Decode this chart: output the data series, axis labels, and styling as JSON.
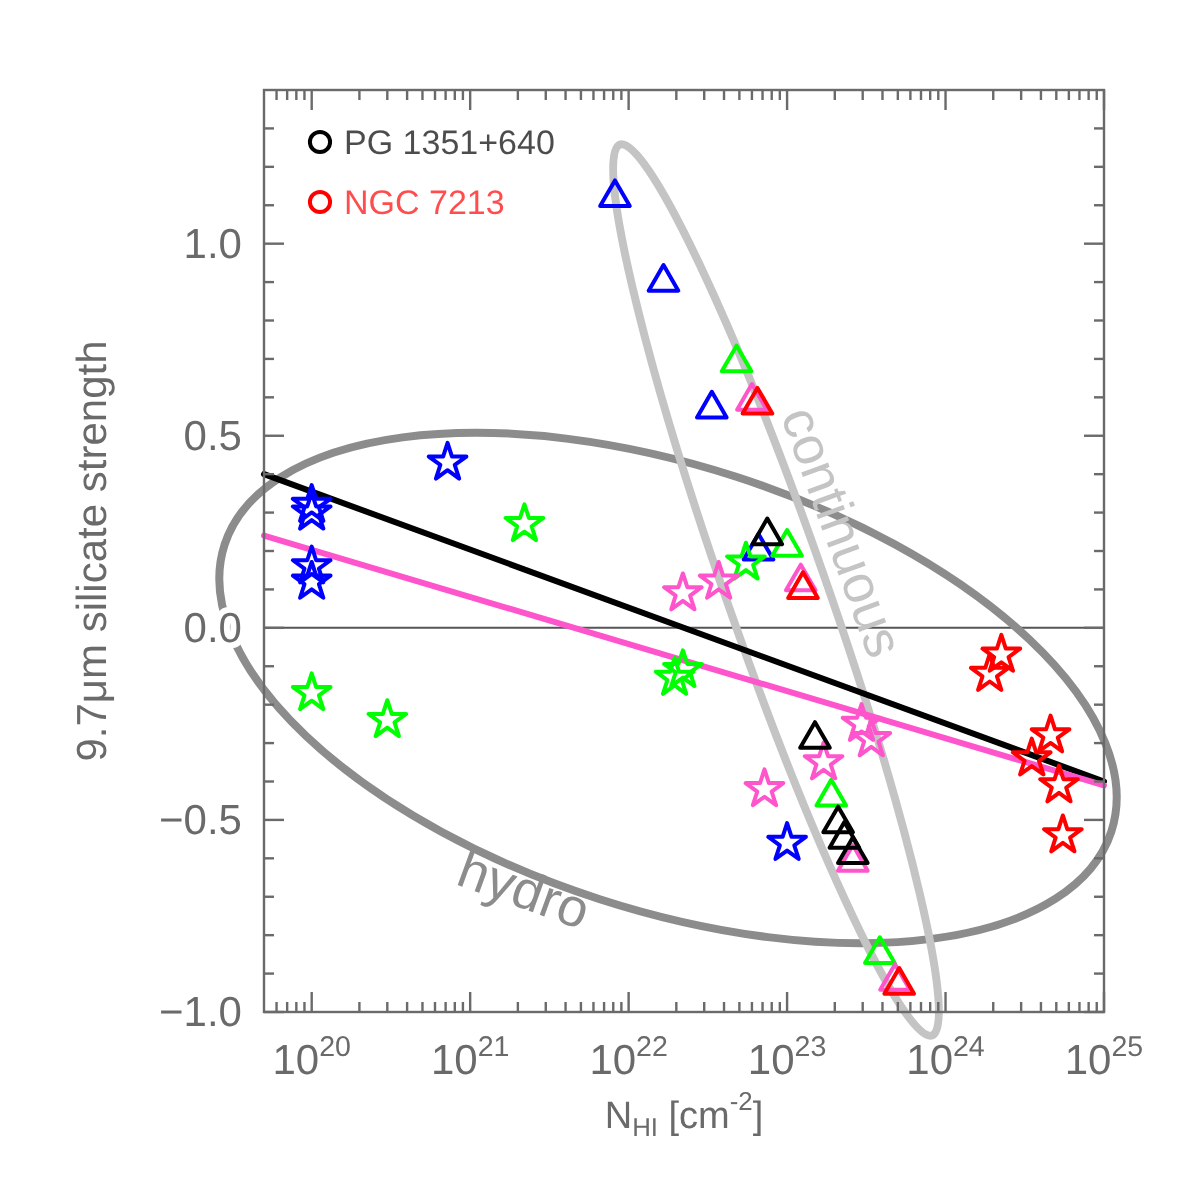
{
  "chart_data": {
    "type": "scatter",
    "xlabel": "N$_{HI}$ [cm$^{-2}$]",
    "ylabel": "9.7μm silicate strength",
    "log": "x",
    "xlim": [
      5e+19,
      1e+25
    ],
    "ylim": [
      -1.0,
      1.4
    ],
    "xticks": [
      {
        "value": 6e+19,
        "label": null
      },
      {
        "value": 7e+19,
        "label": null
      },
      {
        "value": 8e+19,
        "label": null
      },
      {
        "value": 9e+19,
        "label": null
      },
      {
        "value": 1e+20,
        "label": "10$^{20}$"
      },
      {
        "value": 2e+20,
        "label": null
      },
      {
        "value": 3e+20,
        "label": null
      },
      {
        "value": 4e+20,
        "label": null
      },
      {
        "value": 5e+20,
        "label": null
      },
      {
        "value": 6e+20,
        "label": null
      },
      {
        "value": 7e+20,
        "label": null
      },
      {
        "value": 8e+20,
        "label": null
      },
      {
        "value": 9e+20,
        "label": null
      },
      {
        "value": 1e+21,
        "label": "10$^{21}$"
      },
      {
        "value": 2e+21,
        "label": null
      },
      {
        "value": 3e+21,
        "label": null
      },
      {
        "value": 4e+21,
        "label": null
      },
      {
        "value": 5e+21,
        "label": null
      },
      {
        "value": 6e+21,
        "label": null
      },
      {
        "value": 7e+21,
        "label": null
      },
      {
        "value": 8e+21,
        "label": null
      },
      {
        "value": 9e+21,
        "label": null
      },
      {
        "value": 1e+22,
        "label": "10$^{22}$"
      },
      {
        "value": 2e+22,
        "label": null
      },
      {
        "value": 3e+22,
        "label": null
      },
      {
        "value": 4e+22,
        "label": null
      },
      {
        "value": 5e+22,
        "label": null
      },
      {
        "value": 6e+22,
        "label": null
      },
      {
        "value": 7e+22,
        "label": null
      },
      {
        "value": 8e+22,
        "label": null
      },
      {
        "value": 9e+22,
        "label": null
      },
      {
        "value": 1e+23,
        "label": "10$^{23}$"
      },
      {
        "value": 2e+23,
        "label": null
      },
      {
        "value": 3e+23,
        "label": null
      },
      {
        "value": 4e+23,
        "label": null
      },
      {
        "value": 5e+23,
        "label": null
      },
      {
        "value": 6e+23,
        "label": null
      },
      {
        "value": 7e+23,
        "label": null
      },
      {
        "value": 8e+23,
        "label": null
      },
      {
        "value": 9e+23,
        "label": null
      },
      {
        "value": 1e+24,
        "label": "10$^{24}$"
      },
      {
        "value": 2e+24,
        "label": null
      },
      {
        "value": 3e+24,
        "label": null
      },
      {
        "value": 4e+24,
        "label": null
      },
      {
        "value": 5e+24,
        "label": null
      },
      {
        "value": 6e+24,
        "label": null
      },
      {
        "value": 7e+24,
        "label": null
      },
      {
        "value": 8e+24,
        "label": null
      },
      {
        "value": 9e+24,
        "label": null
      },
      {
        "value": 1e+25,
        "label": "10$^{25}$"
      }
    ],
    "yticks": [
      {
        "value": -1.0,
        "label": "−1.0"
      },
      {
        "value": -0.9,
        "label": null
      },
      {
        "value": -0.8,
        "label": null
      },
      {
        "value": -0.7,
        "label": null
      },
      {
        "value": -0.6,
        "label": null
      },
      {
        "value": -0.5,
        "label": "−0.5"
      },
      {
        "value": -0.4,
        "label": null
      },
      {
        "value": -0.3,
        "label": null
      },
      {
        "value": -0.2,
        "label": null
      },
      {
        "value": -0.1,
        "label": null
      },
      {
        "value": 0,
        "label": "0.0"
      },
      {
        "value": 0.1,
        "label": null
      },
      {
        "value": 0.2,
        "label": null
      },
      {
        "value": 0.3,
        "label": null
      },
      {
        "value": 0.4,
        "label": null
      },
      {
        "value": 0.5,
        "label": "0.5"
      },
      {
        "value": 0.6,
        "label": null
      },
      {
        "value": 0.7,
        "label": null
      },
      {
        "value": 0.8,
        "label": null
      },
      {
        "value": 0.9,
        "label": null
      },
      {
        "value": 1.0,
        "label": "1.0"
      },
      {
        "value": 1.1,
        "label": null
      },
      {
        "value": 1.2,
        "label": null
      },
      {
        "value": 1.3,
        "label": null
      }
    ],
    "legend": "top left",
    "ref_lines": [
      {
        "axis": "y",
        "value": 0,
        "color": "#555555"
      }
    ],
    "annotations": [
      "hydro",
      "continuous"
    ],
    "series": [
      {
        "type": "line",
        "color": "#000000",
        "x": [
          5e+19,
          1e+25
        ],
        "values": [
          0.4,
          -0.4
        ]
      },
      {
        "type": "line",
        "color": "#ff55cc",
        "x": [
          5e+19,
          1e+25
        ],
        "values": [
          0.24,
          -0.41
        ]
      },
      {
        "color": "#0000ff",
        "marker": "star",
        "x": [
          1e+20,
          1e+20,
          1e+20,
          1e+20,
          7.2e+20,
          1e+23
        ],
        "values": [
          0.32,
          0.3,
          0.16,
          0.12,
          0.43,
          -0.56
        ]
      },
      {
        "color": "#0000ff",
        "marker": "triangle",
        "x": [
          8.2e+21,
          1.66e+22,
          3.35e+22,
          6.6e+22
        ],
        "values": [
          1.12,
          0.9,
          0.57,
          0.2
        ]
      },
      {
        "color": "#00ff00",
        "marker": "star",
        "x": [
          1e+20,
          3e+20,
          2.2e+21,
          1.95e+22,
          2.2e+22,
          5.5e+22
        ],
        "values": [
          -0.17,
          -0.24,
          0.27,
          -0.13,
          -0.11,
          0.17
        ]
      },
      {
        "color": "#00ff00",
        "marker": "triangle",
        "x": [
          4.8e+22,
          1e+23,
          1.9e+23,
          3.85e+23
        ],
        "values": [
          0.69,
          0.21,
          -0.44,
          -0.85
        ]
      },
      {
        "color": "#ff55cc",
        "marker": "star",
        "x": [
          2.2e+22,
          3.7e+22,
          7.2e+22,
          1.7e+23,
          2.95e+23,
          3.4e+23
        ],
        "values": [
          0.09,
          0.12,
          -0.42,
          -0.35,
          -0.25,
          -0.29
        ]
      },
      {
        "color": "#ff55cc",
        "marker": "triangle",
        "x": [
          6e+22,
          1.22e+23,
          2.6e+23,
          4.8e+23
        ],
        "values": [
          0.59,
          0.12,
          -0.61,
          -0.92
        ]
      },
      {
        "color": "#ff0000",
        "marker": "star",
        "x": [
          1.9e+24,
          2.25e+24,
          3.5e+24,
          4.6e+24,
          5.2e+24,
          5.5e+24
        ],
        "values": [
          -0.12,
          -0.07,
          -0.34,
          -0.28,
          -0.41,
          -0.54
        ]
      },
      {
        "color": "#ff0000",
        "marker": "triangle",
        "x": [
          6.5e+22,
          1.26e+23,
          5.1e+23
        ],
        "values": [
          0.58,
          0.1,
          -0.93
        ]
      },
      {
        "color": "#000000",
        "marker": "triangle",
        "x": [
          7.5e+22,
          1.5e+23,
          2.1e+23,
          2.3e+23,
          2.6e+23
        ],
        "values": [
          0.24,
          -0.29,
          -0.51,
          -0.55,
          -0.59
        ]
      },
      {
        "name": "PG 1351+640",
        "color": "#000000",
        "marker": "circle"
      },
      {
        "name": "NGC 7213",
        "color": "#ff0000",
        "marker": "circle"
      }
    ]
  }
}
